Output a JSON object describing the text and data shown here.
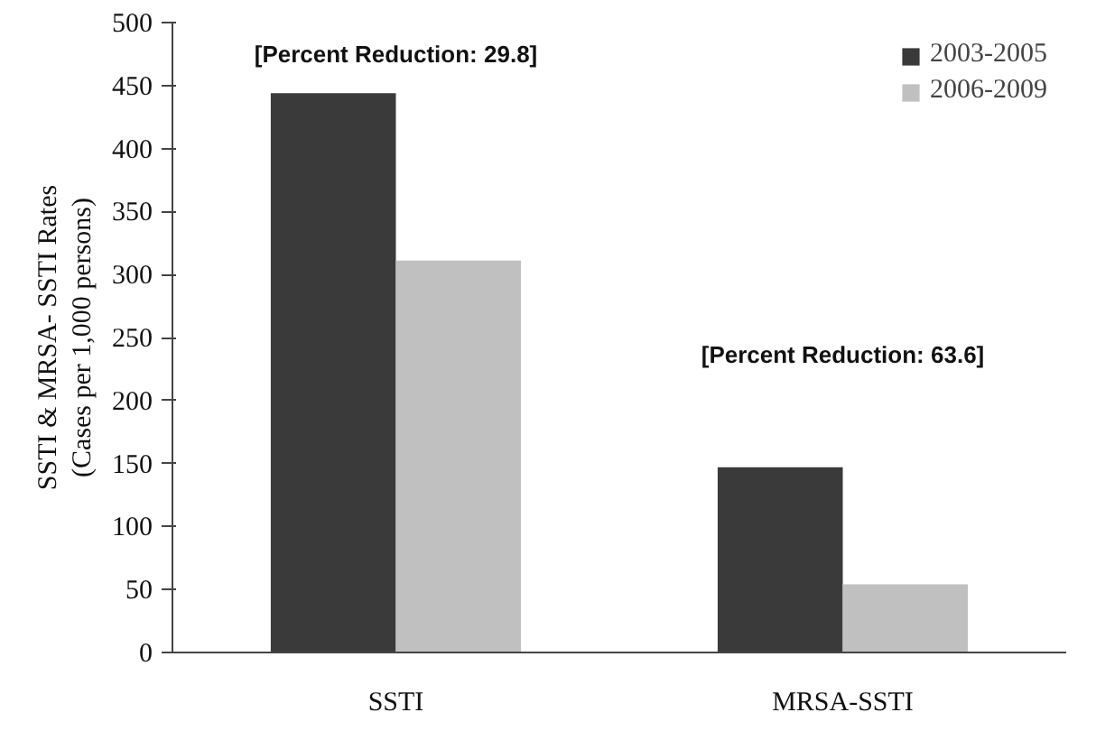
{
  "chart_data": {
    "type": "bar",
    "categories": [
      "SSTI",
      "MRSA-SSTI"
    ],
    "series": [
      {
        "name": "2003-2005",
        "color": "#3a3a3a",
        "values": [
          444,
          147
        ]
      },
      {
        "name": "2006-2009",
        "color": "#c0c0c0",
        "values": [
          311,
          54
        ]
      }
    ],
    "ylabel": "SSTI & MRSA- SSTI Rates\n(Cases per 1,000 persons)",
    "ylim": [
      0,
      500
    ],
    "yticks": [
      0,
      50,
      100,
      150,
      200,
      250,
      300,
      350,
      400,
      450,
      500
    ],
    "annotations": [
      "[Percent Reduction: 29.8]",
      "[Percent Reduction: 63.6]"
    ],
    "grid": false,
    "legend": "top right"
  }
}
